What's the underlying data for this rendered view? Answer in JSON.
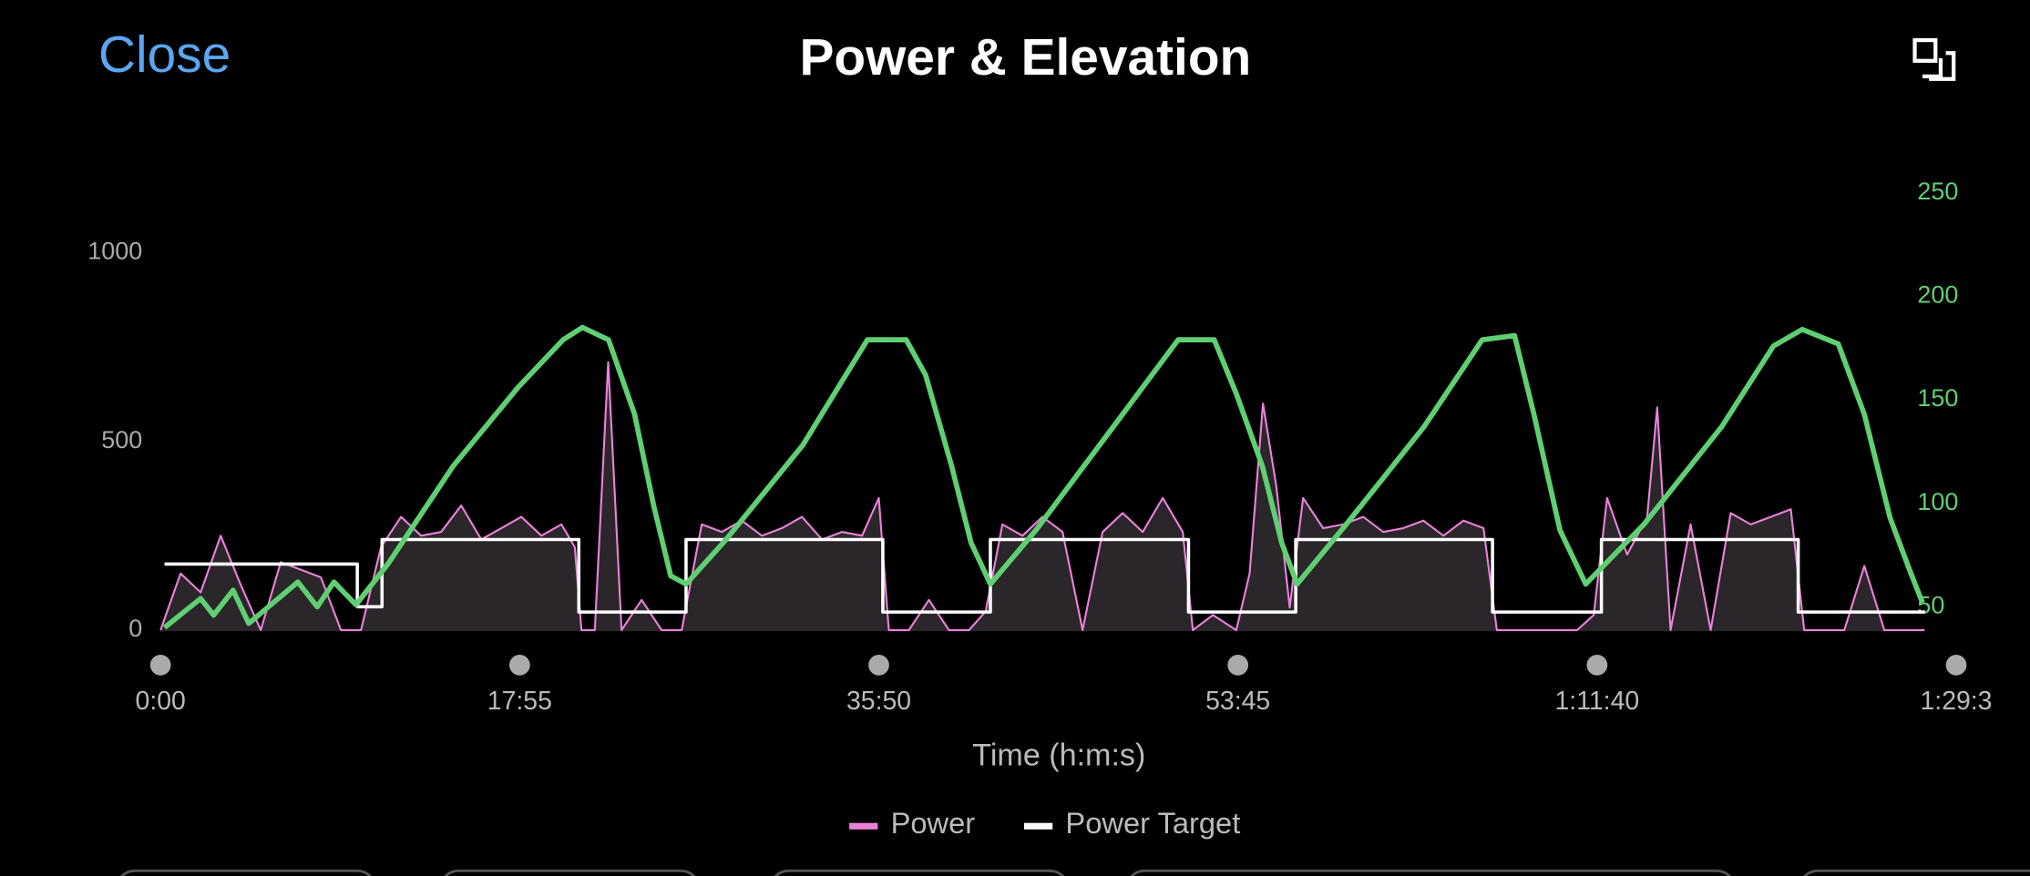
{
  "header": {
    "close": "Close"
  },
  "chart_data": {
    "type": "line",
    "title": "Power & Elevation",
    "xlabel": "Time (h:m:s)",
    "xlim": [
      0,
      5375
    ],
    "xticks": [
      {
        "value": 0,
        "label": "0:00"
      },
      {
        "value": 1075,
        "label": "17:55"
      },
      {
        "value": 2150,
        "label": "35:50"
      },
      {
        "value": 3225,
        "label": "53:45"
      },
      {
        "value": 4300,
        "label": "1:11:40"
      },
      {
        "value": 5375,
        "label": "1:29:3"
      }
    ],
    "ylim": [
      0,
      1158
    ],
    "yticks": [
      0,
      500,
      1000
    ],
    "y2lim": [
      38.75,
      250
    ],
    "y2ticks": [
      50,
      100,
      150,
      200,
      250
    ],
    "legend": "bottom",
    "series": [
      {
        "name": "Power",
        "color": "#e982d9",
        "fill": "#2b2629",
        "x": [
          0,
          60,
          120,
          180,
          240,
          300,
          360,
          420,
          480,
          540,
          600,
          660,
          720,
          780,
          840,
          900,
          960,
          1020,
          1080,
          1140,
          1200,
          1240,
          1260,
          1300,
          1340,
          1380,
          1440,
          1500,
          1560,
          1620,
          1680,
          1740,
          1800,
          1860,
          1920,
          1980,
          2040,
          2100,
          2150,
          2180,
          2240,
          2300,
          2360,
          2420,
          2470,
          2520,
          2580,
          2640,
          2700,
          2760,
          2820,
          2880,
          2940,
          3000,
          3060,
          3090,
          3150,
          3220,
          3260,
          3300,
          3340,
          3380,
          3420,
          3480,
          3540,
          3600,
          3660,
          3720,
          3780,
          3840,
          3900,
          3960,
          4000,
          4060,
          4120,
          4180,
          4240,
          4290,
          4330,
          4390,
          4450,
          4480,
          4520,
          4580,
          4640,
          4700,
          4760,
          4820,
          4880,
          4920,
          4980,
          5040,
          5100,
          5160,
          5220,
          5280
        ],
        "values": [
          0,
          150,
          100,
          250,
          120,
          0,
          180,
          160,
          140,
          0,
          0,
          220,
          300,
          250,
          260,
          330,
          240,
          270,
          300,
          250,
          280,
          220,
          0,
          0,
          710,
          0,
          80,
          0,
          0,
          280,
          260,
          290,
          250,
          270,
          300,
          240,
          260,
          250,
          350,
          0,
          0,
          80,
          0,
          0,
          50,
          280,
          250,
          300,
          260,
          0,
          260,
          310,
          260,
          350,
          260,
          0,
          40,
          0,
          150,
          600,
          380,
          60,
          350,
          270,
          280,
          300,
          260,
          270,
          290,
          250,
          290,
          270,
          0,
          0,
          0,
          0,
          0,
          40,
          350,
          200,
          300,
          590,
          0,
          280,
          0,
          310,
          280,
          300,
          320,
          0,
          0,
          0,
          170,
          0,
          0,
          0
        ]
      },
      {
        "name": "Power Target",
        "color": "#ffffff",
        "step": "post",
        "x": [
          12,
          589,
          663,
          1252,
          1573,
          2162,
          2484,
          3077,
          3398,
          3987,
          4313,
          4902,
          5282
        ],
        "values": [
          175,
          62,
          240,
          48,
          240,
          48,
          240,
          48,
          240,
          48,
          240,
          48,
          48
        ]
      },
      {
        "color": "#5fcf72",
        "axis": "y2",
        "x": [
          12,
          120,
          159,
          217,
          264,
          411,
          469,
          519,
          585,
          682,
          876,
          1070,
          1205,
          1263,
          1341,
          1419,
          1476,
          1527,
          1573,
          1690,
          1922,
          2116,
          2232,
          2290,
          2368,
          2426,
          2484,
          2620,
          2852,
          3046,
          3154,
          3220,
          3298,
          3356,
          3402,
          3550,
          3782,
          3956,
          4053,
          4111,
          4189,
          4266,
          4441,
          4673,
          4828,
          4914,
          5022,
          5100,
          5177,
          5235,
          5274
        ],
        "values": [
          40,
          54,
          46,
          58,
          42,
          62,
          50,
          62,
          51,
          71,
          118,
          156,
          179,
          185,
          179,
          143,
          99,
          65,
          61,
          82,
          128,
          179,
          179,
          162,
          118,
          81,
          61,
          87,
          137,
          179,
          179,
          153,
          118,
          81,
          61,
          90,
          137,
          179,
          181,
          143,
          87,
          61,
          90,
          137,
          176,
          184,
          177,
          143,
          93,
          68,
          52
        ]
      }
    ]
  }
}
